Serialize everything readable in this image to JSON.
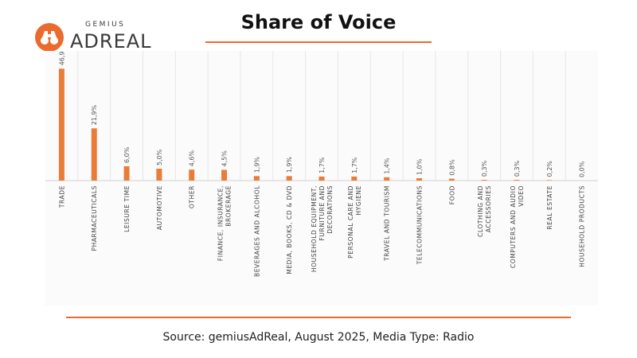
{
  "brand": {
    "top": "GEMIUS",
    "name": "ADREAL",
    "icon": "binoculars-icon",
    "accent": "#ea6b2d"
  },
  "title": "Share of Voice",
  "source": "Source: gemiusAdReal, August 2025, Media Type: Radio",
  "chart_data": {
    "type": "bar",
    "categories": [
      "TRADE",
      "PHARMACEUTICALS",
      "LEISURE TIME",
      "AUTOMOTIVE",
      "OTHER",
      "FINANCE, INSURANCE, BROKERAGE",
      "BEVERAGES AND ALCOHOL",
      "MEDIA, BOOKS, CD & DVD",
      "HOUSEHOLD EQUIPMENT, FURNITURE AND DECORATIONS",
      "PERSONAL CARE AND HYGIENE",
      "TRAVEL AND TOURISM",
      "TELECOMMUNICATIONS",
      "FOOD",
      "CLOTHING AND ACCESSORIES",
      "COMPUTERS AND AUDIO VIDEO",
      "REAL ESTATE",
      "HOUSEHOLD PRODUCTS"
    ],
    "values": [
      46.9,
      21.9,
      6.0,
      5.0,
      4.6,
      4.5,
      1.9,
      1.9,
      1.7,
      1.7,
      1.4,
      1.0,
      0.8,
      0.3,
      0.3,
      0.2,
      0.0
    ],
    "data_labels": [
      "46,9%",
      "21,9%",
      "6,0%",
      "5,0%",
      "4,6%",
      "4,5%",
      "1,9%",
      "1,9%",
      "1,7%",
      "1,7%",
      "1,4%",
      "1,0%",
      "0,8%",
      "0,3%",
      "0,3%",
      "0,2%",
      "0,0%"
    ],
    "ylim": [
      0,
      47
    ],
    "grid": true,
    "bar_color": "#ea7c3a"
  }
}
